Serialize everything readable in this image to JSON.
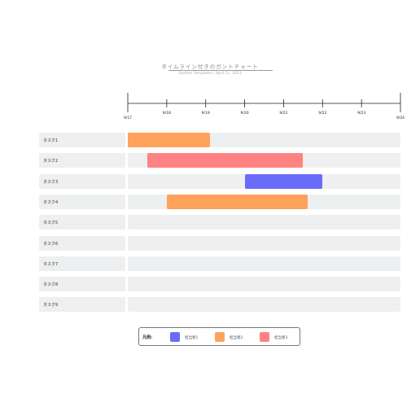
{
  "header": {
    "title": "タイムライン付きのガントチャート",
    "subtitle": "System Templates  |  April 11, 2023"
  },
  "timeline": {
    "dates": [
      "9/17",
      "9/18",
      "9/19",
      "9/20",
      "9/21",
      "9/22",
      "9/23",
      "9/24"
    ]
  },
  "tasks": [
    {
      "label": "タスク1",
      "start": 0.0,
      "end": 2.12,
      "assignee": 1
    },
    {
      "label": "タスク2",
      "start": 0.5,
      "end": 4.5,
      "assignee": 2
    },
    {
      "label": "タスク3",
      "start": 3.0,
      "end": 5.0,
      "assignee": 0
    },
    {
      "label": "タスク4",
      "start": 1.0,
      "end": 4.62,
      "assignee": 1
    },
    {
      "label": "タスク5",
      "start": null,
      "end": null,
      "assignee": null
    },
    {
      "label": "タスク6",
      "start": null,
      "end": null,
      "assignee": null
    },
    {
      "label": "タスク7",
      "start": null,
      "end": null,
      "assignee": null
    },
    {
      "label": "タスク8",
      "start": null,
      "end": null,
      "assignee": null
    },
    {
      "label": "タスク9",
      "start": null,
      "end": null,
      "assignee": null
    }
  ],
  "legend": {
    "title": "凡例:",
    "items": [
      {
        "label": "担当者1",
        "color": "#6b6bfa"
      },
      {
        "label": "担当者2",
        "color": "#ffa25c"
      },
      {
        "label": "担当者3",
        "color": "#ff8282"
      }
    ]
  }
}
